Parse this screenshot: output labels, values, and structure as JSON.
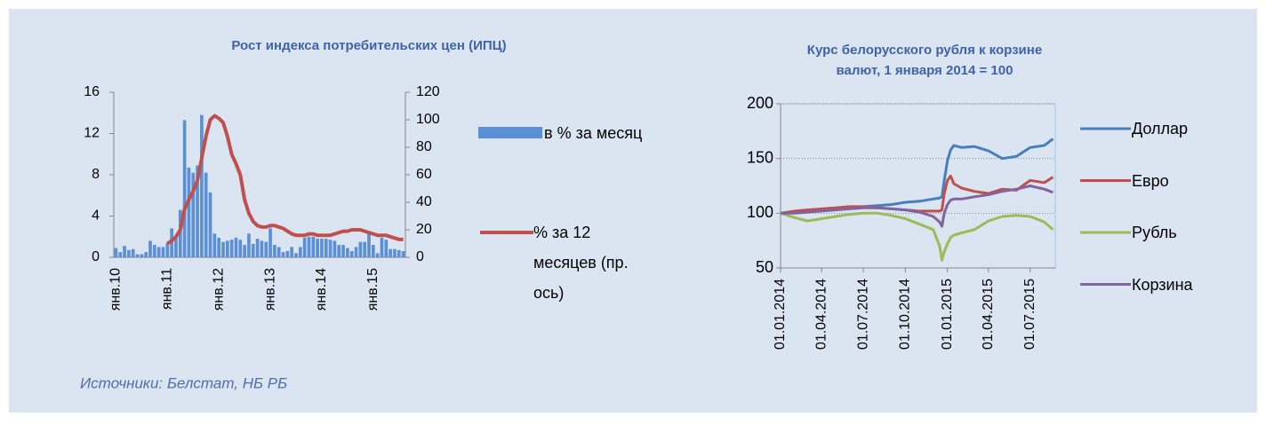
{
  "source": "Источники: Белстат, НБ РБ",
  "chart_data": [
    {
      "type": "bar",
      "title": "Рост индекса потребительских цен (ИПЦ)",
      "categories": [
        "янв.10",
        null,
        null,
        null,
        null,
        null,
        null,
        null,
        null,
        null,
        null,
        null,
        "янв.11",
        null,
        null,
        null,
        null,
        null,
        null,
        null,
        null,
        null,
        null,
        null,
        "янв.12",
        null,
        null,
        null,
        null,
        null,
        null,
        null,
        null,
        null,
        null,
        null,
        "янв.13",
        null,
        null,
        null,
        null,
        null,
        null,
        null,
        null,
        null,
        null,
        null,
        "янв.14",
        null,
        null,
        null,
        null,
        null,
        null,
        null,
        null,
        null,
        null,
        null,
        "янв.15",
        null,
        null,
        null,
        null,
        null,
        null,
        null
      ],
      "series": [
        {
          "name": "в % за месяц",
          "color": "#5b8fd6",
          "type": "bar",
          "values": [
            0.9,
            0.5,
            1.1,
            0.7,
            0.8,
            0.3,
            0.3,
            0.5,
            1.6,
            1.2,
            1.0,
            1.0,
            1.4,
            2.8,
            2.0,
            4.6,
            13.3,
            8.7,
            8.2,
            8.9,
            13.8,
            8.2,
            6.3,
            2.3,
            1.9,
            1.5,
            1.6,
            1.7,
            1.9,
            1.7,
            1.2,
            2.3,
            1.3,
            1.8,
            1.6,
            1.5,
            2.8,
            1.2,
            1.0,
            0.5,
            0.6,
            1.0,
            0.4,
            1.0,
            1.9,
            2.0,
            2.0,
            1.8,
            1.8,
            1.8,
            1.7,
            1.6,
            1.2,
            1.2,
            0.9,
            0.6,
            1.0,
            1.5,
            1.5,
            2.3,
            1.2,
            0.4,
            1.9,
            1.7,
            0.8,
            0.8,
            0.7,
            0.6
          ]
        },
        {
          "name": "% за 12 месяцев (пр. ось)",
          "color": "#c0504d",
          "type": "line",
          "axis": "y2",
          "values": [
            null,
            null,
            null,
            null,
            null,
            null,
            null,
            null,
            null,
            null,
            null,
            null,
            10,
            12,
            15,
            20,
            35,
            42,
            48,
            56,
            72,
            88,
            100,
            103,
            101,
            98,
            88,
            75,
            68,
            60,
            42,
            32,
            26,
            23,
            22,
            22,
            23,
            23,
            22,
            21,
            19,
            17,
            16,
            16,
            16,
            17,
            17,
            16,
            16,
            16,
            16,
            17,
            18,
            19,
            19,
            20,
            20,
            20,
            19,
            18,
            17,
            16,
            16,
            16,
            15,
            14,
            13,
            13
          ]
        }
      ],
      "ylim": [
        0,
        16
      ],
      "yticks": [
        0,
        4,
        8,
        12,
        16
      ],
      "y2lim": [
        0,
        120
      ],
      "y2ticks": [
        0,
        20,
        40,
        60,
        80,
        100,
        120
      ],
      "grid": false,
      "legend": "right"
    },
    {
      "type": "line",
      "title": "Курс белорусского рубля к корзине валют, 1 января 2014 = 100",
      "x": [
        "2014-01-01",
        "2014-02-01",
        "2014-03-01",
        "2014-04-01",
        "2014-05-01",
        "2014-06-01",
        "2014-07-01",
        "2014-08-01",
        "2014-09-01",
        "2014-10-01",
        "2014-11-01",
        "2014-12-01",
        "2014-12-15",
        "2014-12-20",
        "2014-12-25",
        "2015-01-01",
        "2015-01-08",
        "2015-01-15",
        "2015-02-01",
        "2015-03-01",
        "2015-04-01",
        "2015-05-01",
        "2015-06-01",
        "2015-07-01",
        "2015-08-01",
        "2015-08-20"
      ],
      "series": [
        {
          "name": "Доллар",
          "color": "#4a7ebb",
          "values": [
            100,
            101,
            102,
            103,
            104,
            105,
            106,
            107,
            108,
            110,
            111,
            113,
            114,
            115,
            130,
            148,
            158,
            162,
            160,
            161,
            157,
            150,
            152,
            160,
            162,
            168
          ]
        },
        {
          "name": "Евро",
          "color": "#c0504d",
          "values": [
            100,
            102,
            103,
            104,
            105,
            106,
            106,
            105,
            104,
            103,
            102,
            102,
            102,
            103,
            118,
            130,
            134,
            127,
            123,
            120,
            118,
            122,
            121,
            130,
            128,
            133
          ]
        },
        {
          "name": "Рубль",
          "color": "#9bbb59",
          "values": [
            100,
            96,
            93,
            95,
            97,
            99,
            100,
            100,
            98,
            95,
            90,
            85,
            70,
            57,
            65,
            72,
            78,
            80,
            82,
            85,
            93,
            97,
            98,
            97,
            92,
            85
          ]
        },
        {
          "name": "Корзина",
          "color": "#8064a2",
          "values": [
            100,
            100,
            101,
            102,
            103,
            104,
            105,
            105,
            104,
            103,
            101,
            97,
            92,
            88,
            100,
            108,
            112,
            113,
            113,
            115,
            117,
            120,
            122,
            125,
            122,
            119
          ]
        }
      ],
      "xlim": [
        "2014-01-01",
        "2015-08-25"
      ],
      "xticks": [
        {
          "value": "2014-01-01",
          "label": "01.01.2014"
        },
        {
          "value": "2014-04-01",
          "label": "01.04.2014"
        },
        {
          "value": "2014-07-01",
          "label": "01.07.2014"
        },
        {
          "value": "2014-10-01",
          "label": "01.10.2014"
        },
        {
          "value": "2015-01-01",
          "label": "01.01.2015"
        },
        {
          "value": "2015-04-01",
          "label": "01.04.2015"
        },
        {
          "value": "2015-07-01",
          "label": "01.07.2015"
        }
      ],
      "ylim": [
        50,
        200
      ],
      "yticks": [
        50,
        100,
        150,
        200
      ],
      "grid": true,
      "legend": "right"
    }
  ]
}
